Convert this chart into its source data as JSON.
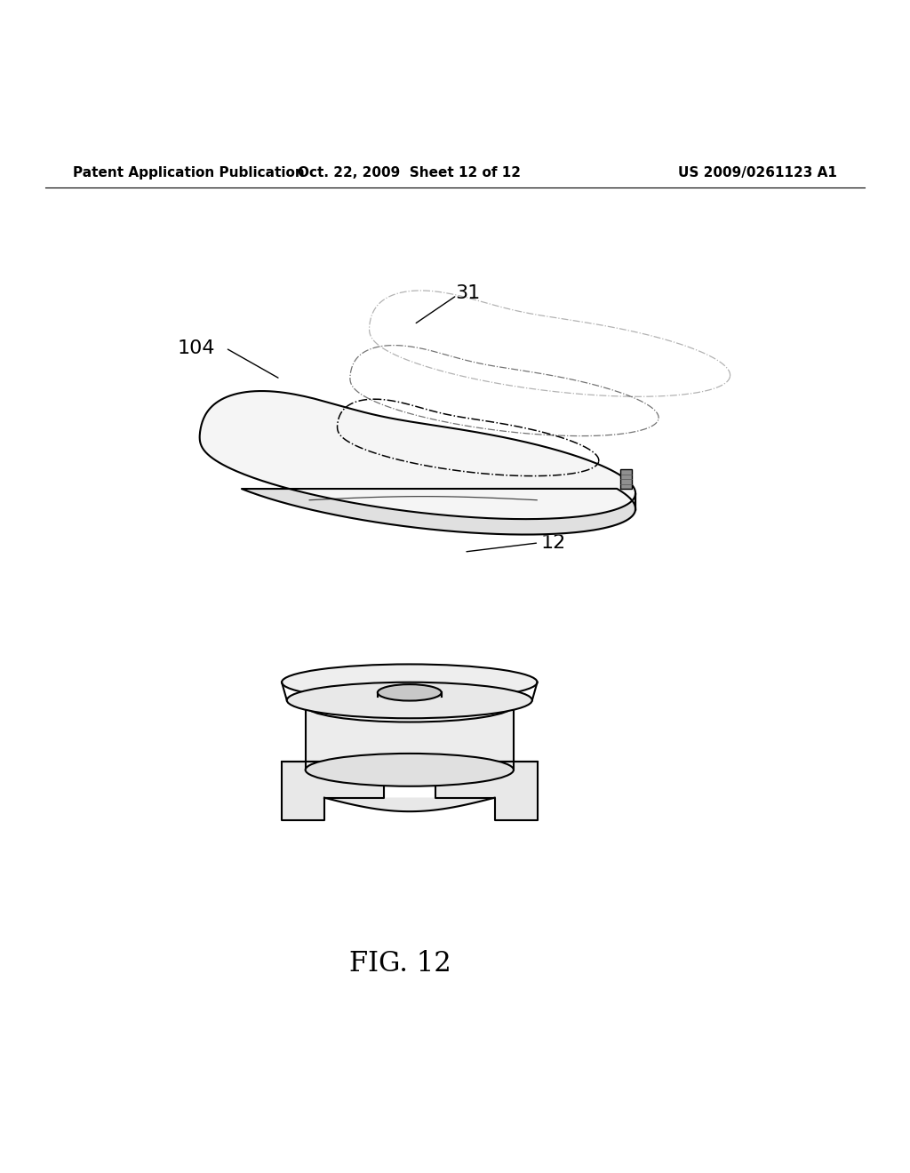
{
  "background_color": "#ffffff",
  "header_left": "Patent Application Publication",
  "header_center": "Oct. 22, 2009  Sheet 12 of 12",
  "header_right": "US 2009/0261123 A1",
  "figure_label": "FIG. 12",
  "line_color": "#000000",
  "label_fontsize": 16,
  "header_fontsize": 11,
  "fig_label_fontsize": 22
}
